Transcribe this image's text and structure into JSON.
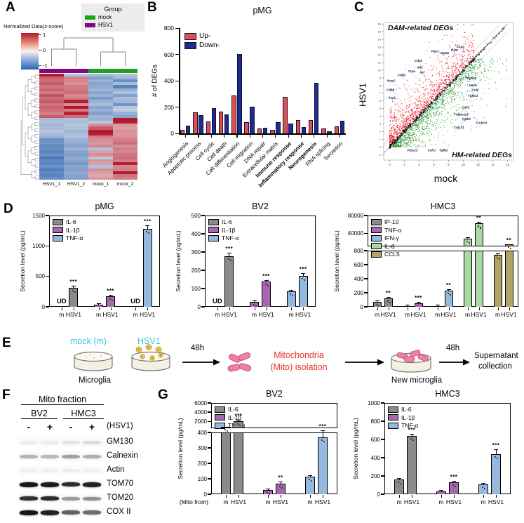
{
  "panels": {
    "A": {
      "label": "A",
      "colorbar_title": "Normalized Data(z-score)",
      "colorbar_ticks": [
        "1",
        "0",
        "-1"
      ],
      "legend": {
        "title": "Group",
        "items": [
          {
            "label": "mock",
            "color": "#1fa11f"
          },
          {
            "label": "HSV1",
            "color": "#800980"
          }
        ]
      },
      "columns": [
        "HSV1_1",
        "HSV1_2",
        "mock_1",
        "mock_2"
      ],
      "column_colors": [
        "#800980",
        "#800980",
        "#1fa11f",
        "#1fa11f"
      ],
      "colormap": {
        "pos": "#b2182b",
        "neg": "#2b62b0",
        "mid": "#f7f4f1"
      },
      "rows": [
        [
          1.3,
          -0.45,
          -0.5,
          -0.45
        ],
        [
          0.85,
          0.7,
          -0.75,
          -0.55
        ],
        [
          0.8,
          0.65,
          -0.6,
          -0.9
        ],
        [
          0.9,
          0.6,
          -0.7,
          -0.5
        ],
        [
          0.75,
          0.7,
          -0.65,
          -1.0
        ],
        [
          0.85,
          0.75,
          -0.55,
          -0.6
        ],
        [
          0.7,
          0.8,
          -0.7,
          -0.45
        ],
        [
          0.95,
          0.65,
          -0.6,
          -0.75
        ],
        [
          0.8,
          0.7,
          -0.8,
          -0.5
        ],
        [
          0.9,
          1.25,
          -0.6,
          -0.55
        ],
        [
          0.75,
          0.6,
          -0.5,
          -0.85
        ],
        [
          0.85,
          1.3,
          -0.7,
          -0.4
        ],
        [
          0.8,
          0.7,
          -0.6,
          -0.35
        ],
        [
          0.7,
          1.25,
          -0.75,
          -0.6
        ],
        [
          0.9,
          0.8,
          -0.55,
          -0.7
        ],
        [
          -0.5,
          -0.45,
          -0.6,
          1.3
        ],
        [
          -0.45,
          -0.5,
          -0.4,
          1.25
        ],
        [
          -0.55,
          -0.4,
          0.6,
          0.55
        ],
        [
          -0.5,
          -0.45,
          0.9,
          0.5
        ],
        [
          -0.4,
          -0.55,
          1.3,
          0.6
        ],
        [
          -0.5,
          -0.5,
          1.25,
          0.55
        ],
        [
          -0.6,
          -0.45,
          0.7,
          0.6
        ],
        [
          -0.9,
          -0.6,
          0.6,
          0.7
        ],
        [
          -0.85,
          -0.65,
          0.55,
          0.8
        ],
        [
          -0.95,
          -0.7,
          0.65,
          0.6
        ],
        [
          -0.9,
          -0.6,
          -0.45,
          0.7
        ],
        [
          -1.0,
          -0.7,
          0.5,
          0.65
        ],
        [
          -0.9,
          -0.75,
          0.6,
          0.75
        ],
        [
          -1.1,
          -0.65,
          -0.4,
          0.8
        ],
        [
          -0.95,
          -0.7,
          0.55,
          0.7
        ],
        [
          -1.0,
          -0.8,
          0.5,
          1.25
        ],
        [
          -0.9,
          -0.7,
          -0.45,
          0.65
        ],
        [
          -1.05,
          -0.75,
          0.6,
          0.7
        ],
        [
          -0.95,
          -0.65,
          0.5,
          1.3
        ],
        [
          -1.0,
          -0.7,
          0.45,
          0.75
        ],
        [
          -0.9,
          -0.75,
          0.55,
          0.7
        ]
      ]
    },
    "B": {
      "label": "B"
    },
    "C": {
      "label": "C"
    },
    "D": {
      "label": "D"
    },
    "E": {
      "label": "E",
      "mock_label": "mock (m)",
      "hsv1_label": "HSV1",
      "microglia_label": "Microglia",
      "duration1": "48h",
      "mito_line1": "Mitochondria",
      "mito_line2": "(Mito) isolation",
      "new_microglia_label": "New microglia",
      "duration2": "48h",
      "supernatant_line1": "Supernatant",
      "supernatant_line2": "collection",
      "accent_cyan": "#3fc3e8",
      "accent_red": "#e8332a"
    },
    "F": {
      "label": "F",
      "title": "Mito fraction",
      "groups": [
        "BV2",
        "HMC3"
      ],
      "lane_signs": [
        "-",
        "+",
        "-",
        "+"
      ],
      "lane_header": "(HSV1)",
      "rows": [
        {
          "name": "GM130",
          "bands": [
            0.06,
            0.06,
            0.1,
            0.13
          ]
        },
        {
          "name": "Calnexin",
          "bands": [
            0.3,
            0.28,
            0.38,
            0.33
          ]
        },
        {
          "name": "Actin",
          "bands": [
            0.05,
            0.05,
            0.06,
            0.05
          ]
        },
        {
          "name": "TOM70",
          "bands": [
            0.97,
            0.95,
            0.88,
            0.92
          ]
        },
        {
          "name": "TOM20",
          "bands": [
            0.85,
            0.88,
            0.4,
            0.45
          ]
        },
        {
          "name": "COX II",
          "bands": [
            0.97,
            0.93,
            0.65,
            0.6
          ]
        }
      ]
    },
    "G": {
      "label": "G",
      "x_prefix": "(Mito from)"
    }
  },
  "chart_data": [
    {
      "type": "bar",
      "title": "pMG",
      "ylabel": "# of DEGs",
      "ylim": [
        0,
        800
      ],
      "yticks": [
        0,
        200,
        400,
        600,
        800
      ],
      "categories": [
        "Angiogenesis",
        "Apoptotic process",
        "Cell cycle",
        "Cell death",
        "Cell differentiation",
        "Cell migration",
        "DNA repair",
        "Extracellular matrix",
        "Immune response",
        "Inflammatory response",
        "Neurogenesis",
        "RNA splicing",
        "Secretion"
      ],
      "bold_categories": [
        "Immune response",
        "Inflammatory response",
        "Neurogenesis"
      ],
      "series": [
        {
          "name": "Up-",
          "color": "#e0504b",
          "values": [
            25,
            160,
            90,
            165,
            290,
            85,
            40,
            25,
            275,
            100,
            100,
            40,
            55
          ]
        },
        {
          "name": "Down-",
          "color": "#1f2d8a",
          "values": [
            60,
            140,
            190,
            145,
            605,
            205,
            45,
            85,
            75,
            50,
            385,
            15,
            95
          ]
        }
      ],
      "bar_border": "#0d0d40"
    },
    {
      "type": "scatter",
      "xlabel": "mock",
      "ylabel": "HSV1",
      "xlim": [
        0,
        16
      ],
      "ylim": [
        -1,
        16
      ],
      "annotation_top": "DAM-related DEGs",
      "annotation_bottom": "HM-related DEGs",
      "clouds": [
        {
          "name": "DAM-up",
          "color": "#e60012",
          "count": 1100
        },
        {
          "name": "HM-down",
          "color": "#128a12",
          "count": 1100
        },
        {
          "name": "unchanged",
          "color": "#000000",
          "count": 650
        }
      ],
      "dam_genes": [
        {
          "name": "Nos2",
          "x": 1.5,
          "y": 7.6,
          "lx": 0.2,
          "ly": 8.5
        },
        {
          "name": "Cd68",
          "x": 1.2,
          "y": 6.8,
          "lx": 0.1,
          "ly": 7.3
        },
        {
          "name": "Arg1",
          "x": 1.0,
          "y": 5.6,
          "lx": 0.3,
          "ly": 6.3
        },
        {
          "name": "Cd86",
          "x": 2.6,
          "y": 8.5,
          "lx": 1.6,
          "ly": 9.2
        },
        {
          "name": "Tspo",
          "x": 3.8,
          "y": 8.9,
          "lx": 3.0,
          "ly": 9.7
        },
        {
          "name": "Aif1",
          "x": 4.6,
          "y": 9.3,
          "lx": 4.1,
          "ly": 10.2
        },
        {
          "name": "Axl",
          "x": 5.0,
          "y": 8.9,
          "lx": 4.4,
          "ly": 9.6
        },
        {
          "name": "Cd52",
          "x": 4.8,
          "y": 10.2,
          "lx": 3.9,
          "ly": 11.1
        },
        {
          "name": "Ptprc",
          "x": 7.0,
          "y": 10.9,
          "lx": 6.2,
          "ly": 12.3
        },
        {
          "name": "Itgam",
          "x": 7.9,
          "y": 10.8,
          "lx": 7.5,
          "ly": 12.1
        },
        {
          "name": "B2m",
          "x": 9.2,
          "y": 11.2,
          "lx": 8.8,
          "ly": 12.5
        },
        {
          "name": "C1qa",
          "x": 9.9,
          "y": 11.5,
          "lx": 9.6,
          "ly": 12.9
        }
      ],
      "hm_genes": [
        {
          "name": "Tgfbr2",
          "x": 10.2,
          "y": 8.0,
          "lx": 11.1,
          "ly": 8.8
        },
        {
          "name": "Hexb",
          "x": 10.4,
          "y": 7.2,
          "lx": 11.3,
          "ly": 7.9
        },
        {
          "name": "Cst3",
          "x": 10.7,
          "y": 6.7,
          "lx": 11.6,
          "ly": 7.3
        },
        {
          "name": "Tgfbr1",
          "x": 10.4,
          "y": 6.0,
          "lx": 11.3,
          "ly": 6.5
        },
        {
          "name": "Cd33",
          "x": 9.4,
          "y": 4.4,
          "lx": 10.3,
          "ly": 5.0
        },
        {
          "name": "Tmem119",
          "x": 8.9,
          "y": 3.6,
          "lx": 9.7,
          "ly": 4.1
        },
        {
          "name": "Tgfb3",
          "x": 9.6,
          "y": 3.0,
          "lx": 10.4,
          "ly": 3.5
        },
        {
          "name": "Cx3cr1",
          "x": 11.3,
          "y": 2.4,
          "lx": 12.5,
          "ly": 3.0
        },
        {
          "name": "Col1a1",
          "x": 8.7,
          "y": 1.9,
          "lx": 9.4,
          "ly": 2.4
        }
      ],
      "baseline_genes": [
        {
          "name": "P2ry12",
          "x": 3.1
        },
        {
          "name": "Csf1r",
          "x": 5.7
        },
        {
          "name": "Tgfb2",
          "x": 7.3
        }
      ]
    },
    {
      "type": "grouped-bar",
      "title": "pMG",
      "ylabel": "Secretion level (pg/mL)",
      "conditions": [
        "m",
        "HSV1"
      ],
      "axis": {
        "lower": {
          "max": 1500,
          "ticks": [
            0,
            500,
            1000,
            1500
          ]
        }
      },
      "series": [
        {
          "name": "IL-6",
          "color": "#8b8b8b",
          "values": [
            null,
            310
          ],
          "ud": [
            true,
            false
          ],
          "err": [
            0,
            35
          ],
          "sig": [
            null,
            "***"
          ]
        },
        {
          "name": "IL-1β",
          "color": "#a768af",
          "values": [
            30,
            170
          ],
          "ud": [
            false,
            false
          ],
          "err": [
            10,
            22
          ],
          "sig": [
            null,
            "***"
          ]
        },
        {
          "name": "TNF-α",
          "color": "#94b9de",
          "values": [
            null,
            1280
          ],
          "ud": [
            true,
            false
          ],
          "err": [
            0,
            55
          ],
          "sig": [
            null,
            "***"
          ]
        }
      ]
    },
    {
      "type": "grouped-bar",
      "title": "BV2",
      "ylabel": "Secretion level (pg/mL)",
      "conditions": [
        "m",
        "HSV1"
      ],
      "axis": {
        "lower": {
          "max": 500,
          "ticks": [
            0,
            100,
            200,
            300,
            400,
            500
          ]
        }
      },
      "series": [
        {
          "name": "IL-6",
          "color": "#8b8b8b",
          "values": [
            null,
            278
          ],
          "ud": [
            true,
            false
          ],
          "err": [
            0,
            18
          ],
          "sig": [
            null,
            "***"
          ]
        },
        {
          "name": "IL-1β",
          "color": "#a768af",
          "values": [
            28,
            140
          ],
          "ud": [
            false,
            false
          ],
          "err": [
            6,
            8
          ],
          "sig": [
            null,
            "***"
          ]
        },
        {
          "name": "TNF-α",
          "color": "#94b9de",
          "values": [
            85,
            170
          ],
          "ud": [
            false,
            false
          ],
          "err": [
            5,
            14
          ],
          "sig": [
            null,
            "***"
          ]
        }
      ]
    },
    {
      "type": "grouped-bar",
      "title": "HMC3",
      "ylabel": "Secretion level (pg/mL)",
      "conditions": [
        "m",
        "HSV1"
      ],
      "axis": {
        "lower": {
          "max": 800,
          "ticks": [
            0,
            200,
            400,
            600,
            800
          ]
        },
        "upper": {
          "min": 10000,
          "max": 80000,
          "ticks": [
            40000,
            80000
          ]
        }
      },
      "series": [
        {
          "name": "IP-10",
          "color": "#8b8b8b",
          "values": [
            75,
            120
          ],
          "ud": [
            false,
            false
          ],
          "err": [
            8,
            12
          ],
          "sig": [
            null,
            "**"
          ]
        },
        {
          "name": "TNF-α",
          "color": "#a768af",
          "values": [
            8,
            55
          ],
          "ud": [
            false,
            false
          ],
          "err": [
            3,
            8
          ],
          "sig": [
            null,
            "***"
          ]
        },
        {
          "name": "IFN-γ",
          "color": "#94b9de",
          "values": [
            15,
            230
          ],
          "ud": [
            false,
            false
          ],
          "err": [
            4,
            18
          ],
          "sig": [
            null,
            "**"
          ]
        },
        {
          "name": "IL-8",
          "color": "#abd8a4",
          "values": [
            28000,
            62000
          ],
          "ud": [
            false,
            false
          ],
          "err": [
            1500,
            2200
          ],
          "sig": [
            null,
            "**"
          ]
        },
        {
          "name": "CCL5",
          "color": "#b1a266",
          "values": [
            740,
            900
          ],
          "ud": [
            false,
            false
          ],
          "err": [
            12,
            0
          ],
          "sig": [
            null,
            "**"
          ]
        }
      ]
    },
    {
      "type": "grouped-bar",
      "title": "BV2",
      "ylabel": "Secretion level (pg/mL)",
      "conditions": [
        "m",
        "HSV1"
      ],
      "axis": {
        "lower": {
          "max": 400,
          "ticks": [
            0,
            100,
            200,
            300,
            400
          ]
        },
        "upper": {
          "min": 500,
          "max": 6000,
          "ticks": [
            2000,
            4000,
            6000
          ]
        }
      },
      "series": [
        {
          "name": "IL-6",
          "color": "#8b8b8b",
          "values": [
            800,
            2100
          ],
          "ud": [
            false,
            false
          ],
          "err": [
            0,
            180
          ],
          "sig": [
            null,
            "***"
          ]
        },
        {
          "name": "IL-1β",
          "color": "#a768af",
          "values": [
            28,
            70
          ],
          "ud": [
            false,
            false
          ],
          "err": [
            6,
            10
          ],
          "sig": [
            null,
            "**"
          ]
        },
        {
          "name": "TNF-α",
          "color": "#94b9de",
          "values": [
            115,
            370
          ],
          "ud": [
            false,
            false
          ],
          "err": [
            6,
            45
          ],
          "sig": [
            null,
            "***"
          ]
        }
      ]
    },
    {
      "type": "grouped-bar",
      "title": "HMC3",
      "ylabel": "Secretion level (pg/mL)",
      "conditions": [
        "m",
        "HSV1"
      ],
      "axis": {
        "lower": {
          "max": 1000,
          "ticks": [
            0,
            200,
            400,
            600,
            800,
            1000
          ]
        }
      },
      "series": [
        {
          "name": "IL-6",
          "color": "#8b8b8b",
          "values": [
            160,
            640
          ],
          "ud": [
            false,
            false
          ],
          "err": [
            15,
            25
          ],
          "sig": [
            null,
            "***"
          ]
        },
        {
          "name": "IL-1β",
          "color": "#a768af",
          "values": [
            30,
            130
          ],
          "ud": [
            false,
            false
          ],
          "err": [
            6,
            12
          ],
          "sig": [
            null,
            "***"
          ]
        },
        {
          "name": "TNF-α",
          "color": "#94b9de",
          "values": [
            110,
            440
          ],
          "ud": [
            false,
            false
          ],
          "err": [
            10,
            55
          ],
          "sig": [
            null,
            "***"
          ]
        }
      ]
    }
  ]
}
